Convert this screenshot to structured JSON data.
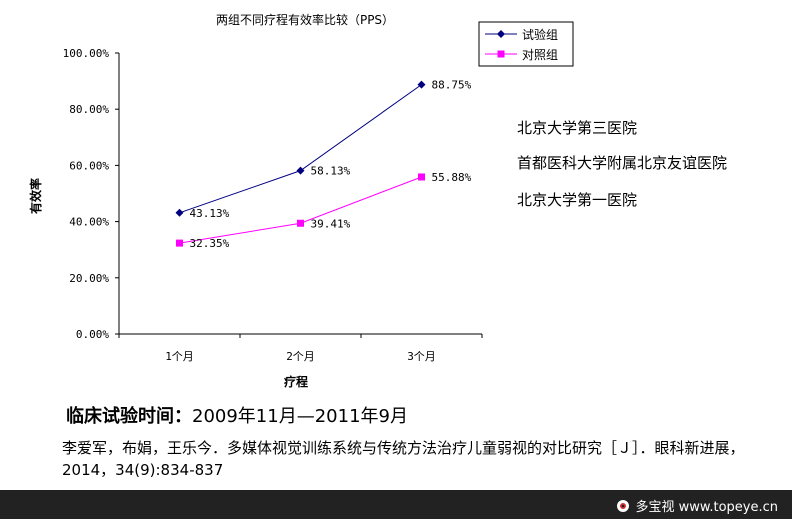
{
  "chart_data": {
    "type": "line",
    "title": "两组不同疗程有效率比较（PPS）",
    "xlabel": "疗程",
    "ylabel": "有效率",
    "categories": [
      "1个月",
      "2个月",
      "3个月"
    ],
    "ylim": [
      0,
      100
    ],
    "yticks": [
      "0.00%",
      "20.00%",
      "40.00%",
      "60.00%",
      "80.00%",
      "100.00%"
    ],
    "legend_position": "top-right",
    "grid": false,
    "series": [
      {
        "name": "试验组",
        "values": [
          43.13,
          58.13,
          88.75
        ],
        "labels": [
          "43.13%",
          "58.13%",
          "88.75%"
        ],
        "color": "#000080",
        "marker": "diamond"
      },
      {
        "name": "对照组",
        "values": [
          32.35,
          39.41,
          55.88
        ],
        "labels": [
          "32.35%",
          "39.41%",
          "55.88%"
        ],
        "color": "#ff00ff",
        "marker": "square"
      }
    ]
  },
  "hospitals": [
    "北京大学第三医院",
    "首都医科大学附属北京友谊医院",
    "北京大学第一医院"
  ],
  "trial": {
    "label": "临床试验时间：",
    "period": "2009年11月—2011年9月"
  },
  "citation": "李爱军，布娟，王乐今．多媒体视觉训练系统与传统方法治疗儿童弱视的对比研究［Ｊ］．眼科新进展，2014，34(9):834-837",
  "footer": {
    "logo_text": "多宝视 www.topeye.cn",
    "logo_icon": "eye-logo-icon",
    "bar_color": "#222222"
  }
}
